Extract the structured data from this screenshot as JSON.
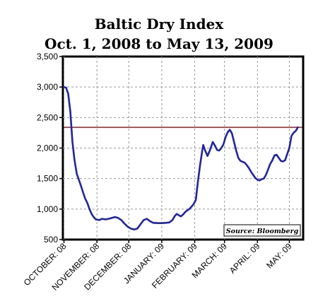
{
  "chart_data": {
    "type": "line",
    "title": "Baltic Dry Index",
    "subtitle": "Oct. 1, 2008 to May 13, 2009",
    "xlabel": "",
    "ylabel": "",
    "ylim": [
      500,
      3500
    ],
    "yticks": [
      500,
      1000,
      1500,
      2000,
      2500,
      3000,
      3500
    ],
    "ytick_labels": [
      "500",
      "1,000",
      "1,500",
      "2,000",
      "2,500",
      "3,000",
      "3,500"
    ],
    "xticks": [
      {
        "label": "OCTOBER: 08",
        "day": 0
      },
      {
        "label": "NOVEMBER: 08",
        "day": 31
      },
      {
        "label": "DECEMBER: 08",
        "day": 61
      },
      {
        "label": "JANUARY: 09",
        "day": 92
      },
      {
        "label": "FEBRUARY: 09",
        "day": 123
      },
      {
        "label": "MARCH: 09",
        "day": 151
      },
      {
        "label": "APRIL: 09",
        "day": 182
      },
      {
        "label": "MAY: 09",
        "day": 212
      }
    ],
    "xlim_days": [
      -1,
      225
    ],
    "grid": true,
    "reference_line": {
      "value": 2340,
      "color": "#c0292b"
    },
    "series": [
      {
        "color": "#1f23b0",
        "points": [
          [
            0,
            3000
          ],
          [
            2,
            2990
          ],
          [
            4,
            2890
          ],
          [
            6,
            2600
          ],
          [
            8,
            2100
          ],
          [
            10,
            1800
          ],
          [
            12,
            1580
          ],
          [
            14,
            1480
          ],
          [
            16,
            1380
          ],
          [
            18,
            1270
          ],
          [
            20,
            1170
          ],
          [
            22,
            1100
          ],
          [
            24,
            1000
          ],
          [
            26,
            920
          ],
          [
            28,
            870
          ],
          [
            30,
            830
          ],
          [
            33,
            820
          ],
          [
            36,
            840
          ],
          [
            39,
            830
          ],
          [
            42,
            840
          ],
          [
            45,
            855
          ],
          [
            48,
            870
          ],
          [
            51,
            855
          ],
          [
            54,
            820
          ],
          [
            57,
            760
          ],
          [
            60,
            710
          ],
          [
            63,
            680
          ],
          [
            66,
            665
          ],
          [
            69,
            680
          ],
          [
            72,
            750
          ],
          [
            75,
            820
          ],
          [
            78,
            840
          ],
          [
            81,
            800
          ],
          [
            84,
            775
          ],
          [
            88,
            770
          ],
          [
            92,
            770
          ],
          [
            96,
            775
          ],
          [
            99,
            780
          ],
          [
            102,
            820
          ],
          [
            104,
            880
          ],
          [
            106,
            920
          ],
          [
            108,
            900
          ],
          [
            110,
            880
          ],
          [
            112,
            910
          ],
          [
            114,
            950
          ],
          [
            116,
            980
          ],
          [
            118,
            1000
          ],
          [
            120,
            1040
          ],
          [
            122,
            1080
          ],
          [
            124,
            1150
          ],
          [
            126,
            1450
          ],
          [
            128,
            1720
          ],
          [
            130,
            1950
          ],
          [
            131,
            2050
          ],
          [
            133,
            1950
          ],
          [
            135,
            1870
          ],
          [
            137,
            1950
          ],
          [
            139,
            2050
          ],
          [
            140,
            2100
          ],
          [
            142,
            2040
          ],
          [
            144,
            1970
          ],
          [
            146,
            1960
          ],
          [
            148,
            2000
          ],
          [
            150,
            2060
          ],
          [
            152,
            2180
          ],
          [
            154,
            2260
          ],
          [
            156,
            2300
          ],
          [
            158,
            2240
          ],
          [
            160,
            2100
          ],
          [
            162,
            1960
          ],
          [
            164,
            1840
          ],
          [
            166,
            1790
          ],
          [
            168,
            1775
          ],
          [
            170,
            1760
          ],
          [
            172,
            1720
          ],
          [
            174,
            1670
          ],
          [
            176,
            1610
          ],
          [
            178,
            1560
          ],
          [
            180,
            1510
          ],
          [
            182,
            1480
          ],
          [
            184,
            1470
          ],
          [
            186,
            1490
          ],
          [
            188,
            1500
          ],
          [
            190,
            1560
          ],
          [
            192,
            1650
          ],
          [
            194,
            1740
          ],
          [
            196,
            1800
          ],
          [
            198,
            1880
          ],
          [
            200,
            1890
          ],
          [
            202,
            1840
          ],
          [
            204,
            1790
          ],
          [
            206,
            1780
          ],
          [
            208,
            1800
          ],
          [
            210,
            1900
          ],
          [
            212,
            2000
          ],
          [
            214,
            2200
          ],
          [
            216,
            2250
          ],
          [
            218,
            2280
          ],
          [
            220,
            2340
          ]
        ]
      }
    ],
    "annotation": "Source: Bloomberg"
  },
  "colors": {
    "line": "#1f23b0",
    "reference_line": "#c0292b",
    "grid": "#999999",
    "axis": "#000000"
  }
}
